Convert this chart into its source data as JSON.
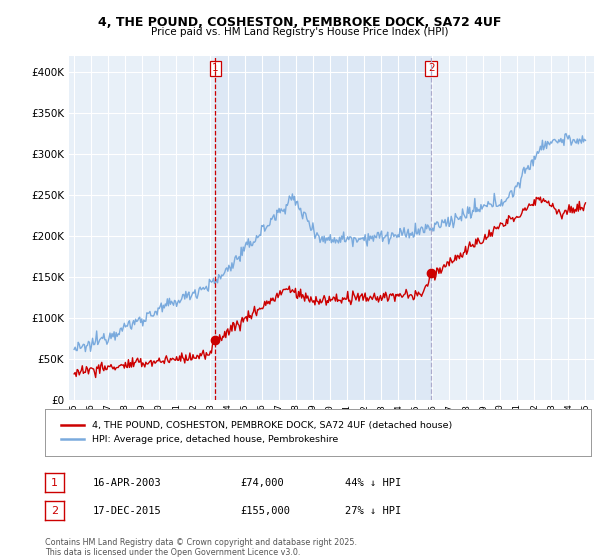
{
  "title_line1": "4, THE POUND, COSHESTON, PEMBROKE DOCK, SA72 4UF",
  "title_line2": "Price paid vs. HM Land Registry's House Price Index (HPI)",
  "legend_label_red": "4, THE POUND, COSHESTON, PEMBROKE DOCK, SA72 4UF (detached house)",
  "legend_label_blue": "HPI: Average price, detached house, Pembrokeshire",
  "annotation1_label": "1",
  "annotation1_date": "16-APR-2003",
  "annotation1_price": "£74,000",
  "annotation1_hpi": "44% ↓ HPI",
  "annotation2_label": "2",
  "annotation2_date": "17-DEC-2015",
  "annotation2_price": "£155,000",
  "annotation2_hpi": "27% ↓ HPI",
  "footer": "Contains HM Land Registry data © Crown copyright and database right 2025.\nThis data is licensed under the Open Government Licence v3.0.",
  "color_red": "#cc0000",
  "color_blue": "#7aaadd",
  "color_vline1": "#cc0000",
  "color_vline2": "#aaaacc",
  "color_shade": "#dde8f5",
  "background_plot": "#e8f0f8",
  "background_fig": "#ffffff",
  "ylim": [
    0,
    420000
  ],
  "yticks": [
    0,
    50000,
    100000,
    150000,
    200000,
    250000,
    300000,
    350000,
    400000
  ],
  "vline1_x": 2003.29,
  "vline2_x": 2015.96,
  "purchase1_x": 2003.29,
  "purchase1_y": 74000,
  "purchase2_x": 2015.96,
  "purchase2_y": 155000,
  "xmin": 1994.7,
  "xmax": 2025.5
}
